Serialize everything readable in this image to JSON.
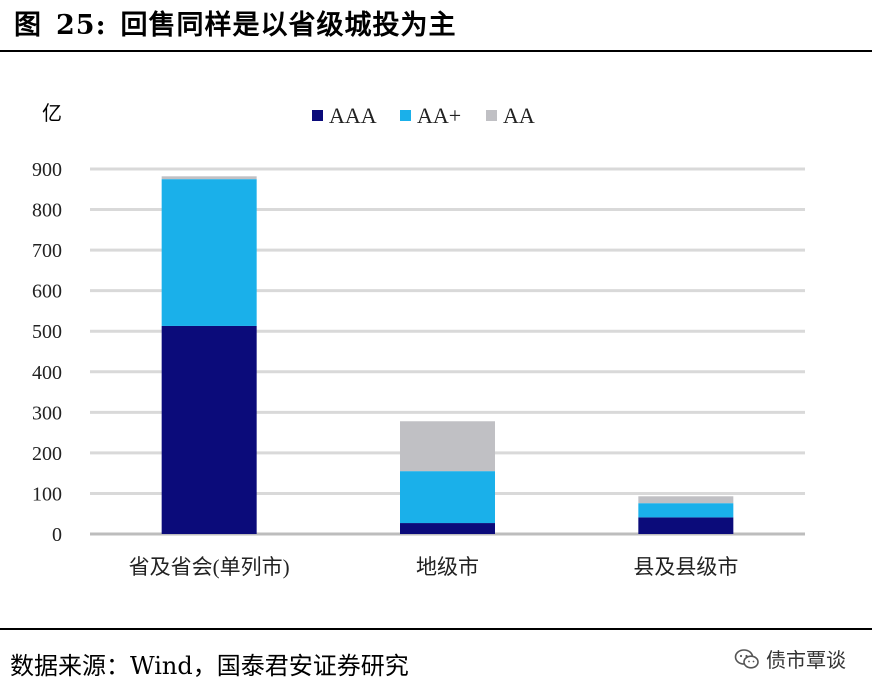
{
  "figure": {
    "label": "图",
    "number": "25:",
    "title": "回售同样是以省级城投为主"
  },
  "source_text": "数据来源：Wind，国泰君安证券研究",
  "watermark_text": "债市覃谈",
  "chart_data": {
    "type": "bar",
    "stacked": true,
    "ylabel": "亿",
    "ylim": [
      0,
      900
    ],
    "yticks": [
      0,
      100,
      200,
      300,
      400,
      500,
      600,
      700,
      800,
      900
    ],
    "grid": true,
    "legend_position": "top",
    "categories": [
      "省及省会(单列市)",
      "地级市",
      "县及县级市"
    ],
    "series": [
      {
        "name": "AAA",
        "color": "#0b0b7a",
        "values": [
          513,
          27,
          41
        ]
      },
      {
        "name": "AA+",
        "color": "#1ab0ea",
        "values": [
          362,
          128,
          35
        ]
      },
      {
        "name": "AA",
        "color": "#c0c0c4",
        "values": [
          7,
          123,
          17
        ]
      }
    ]
  }
}
